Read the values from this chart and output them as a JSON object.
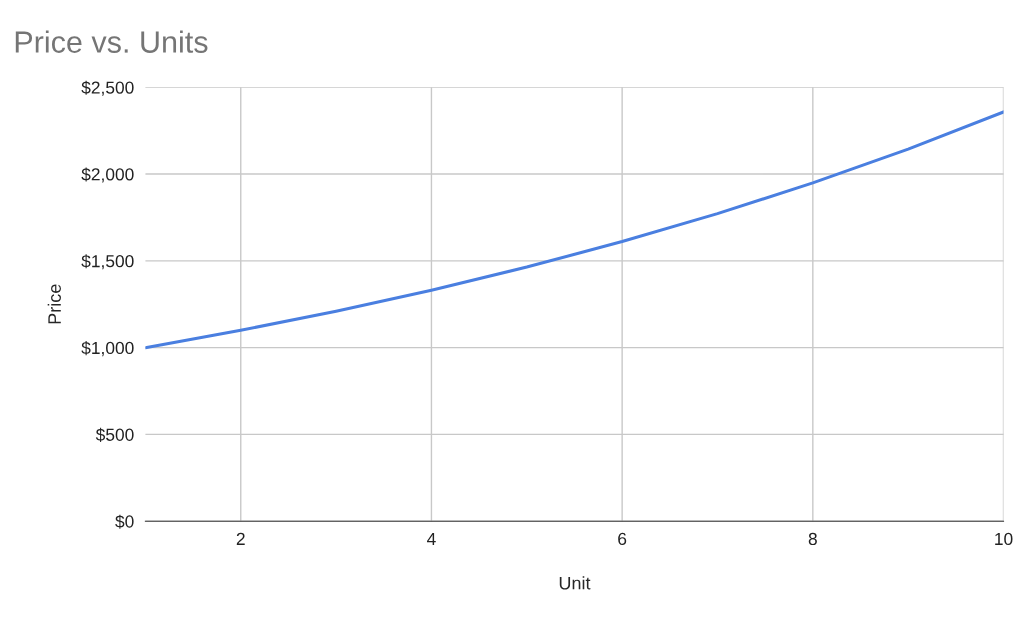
{
  "chart_data": {
    "type": "line",
    "title": "Price vs. Units",
    "xlabel": "Unit",
    "ylabel": "Price",
    "x": [
      1,
      2,
      3,
      4,
      5,
      6,
      7,
      8,
      9,
      10
    ],
    "series": [
      {
        "color": "#4a7fe0",
        "values": [
          1000,
          1100,
          1210,
          1331,
          1464,
          1611,
          1772,
          1949,
          2144,
          2358
        ]
      }
    ],
    "xlim": [
      1,
      10
    ],
    "xticks": [
      2,
      4,
      6,
      8,
      10
    ],
    "ylim": [
      0,
      2500
    ],
    "yticks": [
      {
        "value": 0,
        "label": "$0"
      },
      {
        "value": 500,
        "label": "$500"
      },
      {
        "value": 1000,
        "label": "$1,000"
      },
      {
        "value": 1500,
        "label": "$1,500"
      },
      {
        "value": 2000,
        "label": "$2,000"
      },
      {
        "value": 2500,
        "label": "$2,500"
      }
    ],
    "grid": true
  }
}
